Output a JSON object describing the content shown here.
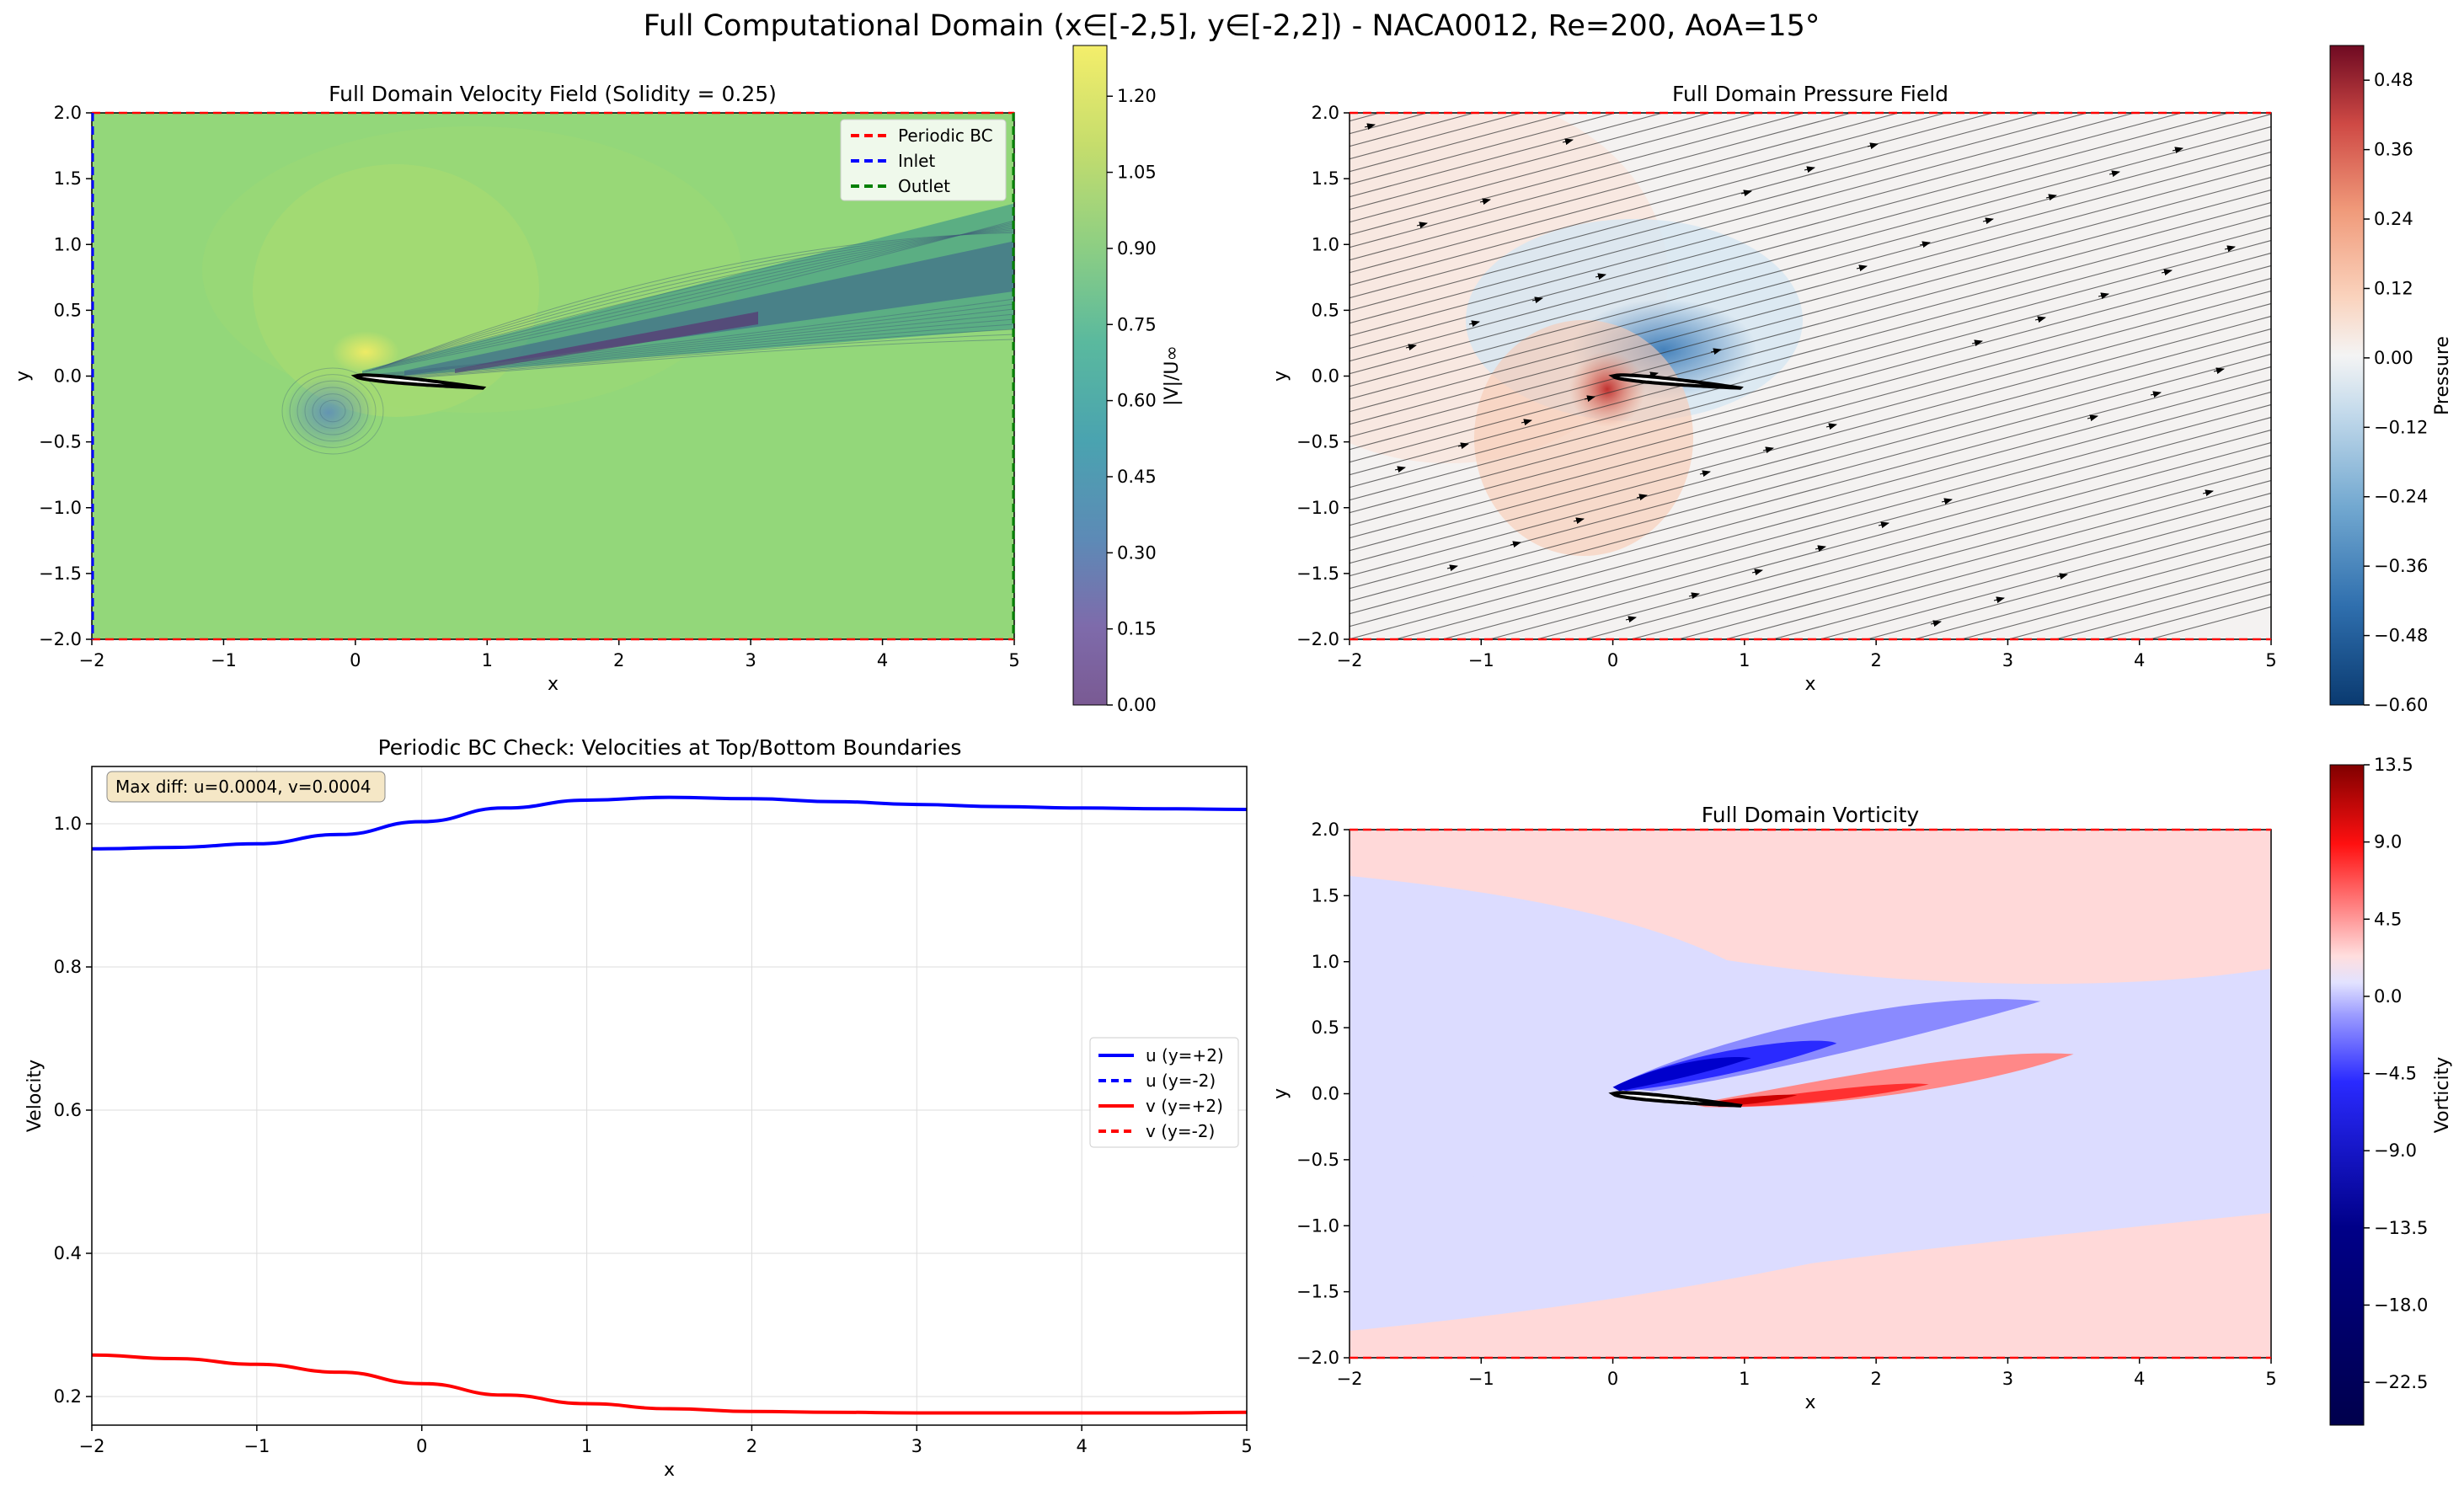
{
  "figure": {
    "suptitle": "Full Computational Domain (x∈[-2,5], y∈[-2,2]) - NACA0012, Re=200, AoA=15°"
  },
  "colors": {
    "periodic": "#ff0000",
    "inlet": "#0000ff",
    "outlet": "#008000",
    "u_line": "#0000ff",
    "v_line": "#ff0000",
    "airfoil_fill": "#ffffff",
    "airfoil_edge": "#000000"
  },
  "chart_data": [
    {
      "id": "velocity",
      "type": "heatmap",
      "title": "Full Domain Velocity Field (Solidity = 0.25)",
      "xlabel": "x",
      "ylabel": "y",
      "xlim": [
        -2,
        5
      ],
      "ylim": [
        -2,
        2
      ],
      "xticks": [
        "−2",
        "−1",
        "0",
        "1",
        "2",
        "3",
        "4",
        "5"
      ],
      "yticks": [
        "2.0",
        "1.5",
        "1.0",
        "0.5",
        "0.0",
        "−0.5",
        "−1.0",
        "−1.5",
        "−2.0"
      ],
      "colorbar": {
        "label": "|V|/U∞",
        "range": [
          0,
          1.3
        ],
        "ticks": [
          "1.20",
          "1.05",
          "0.90",
          "0.75",
          "0.60",
          "0.45",
          "0.30",
          "0.15",
          "0.00"
        ],
        "colormap": "viridis"
      },
      "background_level": 0.99,
      "legend": {
        "placement": "top-right",
        "entries": [
          {
            "label": "Periodic BC",
            "color": "#ff0000",
            "style": "dashed"
          },
          {
            "label": "Inlet",
            "color": "#0000ff",
            "style": "dashed"
          },
          {
            "label": "Outlet",
            "color": "#008000",
            "style": "dashed"
          }
        ]
      },
      "airfoil": {
        "leading_edge": [
          0,
          0
        ],
        "chord": 1,
        "aoa_deg": 15
      }
    },
    {
      "id": "pressure",
      "type": "heatmap",
      "title": "Full Domain Pressure Field",
      "xlabel": "x",
      "ylabel": "y",
      "xlim": [
        -2,
        5
      ],
      "ylim": [
        -2,
        2
      ],
      "xticks": [
        "−2",
        "−1",
        "0",
        "1",
        "2",
        "3",
        "4",
        "5"
      ],
      "yticks": [
        "2.0",
        "1.5",
        "1.0",
        "0.5",
        "0.0",
        "−0.5",
        "−1.0",
        "−1.5",
        "−2.0"
      ],
      "colorbar": {
        "label": "Pressure",
        "range": [
          -0.6,
          0.54
        ],
        "ticks": [
          "0.48",
          "0.36",
          "0.24",
          "0.12",
          "0.00",
          "−0.12",
          "−0.24",
          "−0.36",
          "−0.48",
          "−0.60"
        ],
        "colormap": "RdBu_r"
      },
      "streamline_angle_deg": 15,
      "airfoil": {
        "leading_edge": [
          0,
          0
        ],
        "chord": 1,
        "aoa_deg": 15
      }
    },
    {
      "id": "periodic_check",
      "type": "line",
      "title": "Periodic BC Check: Velocities at Top/Bottom Boundaries",
      "xlabel": "x",
      "ylabel": "Velocity",
      "xlim": [
        -2,
        5
      ],
      "ylim": [
        0.16,
        1.08
      ],
      "xticks": [
        "−2",
        "−1",
        "0",
        "1",
        "2",
        "3",
        "4",
        "5"
      ],
      "yticks": [
        "1.0",
        "0.8",
        "0.6",
        "0.4",
        "0.2"
      ],
      "grid": true,
      "annotation": "Max diff: u=0.0004, v=0.0004",
      "legend": {
        "placement": "center-right",
        "entries": [
          {
            "label": "u (y=+2)",
            "color": "#0000ff",
            "style": "solid"
          },
          {
            "label": "u (y=-2)",
            "color": "#0000ff",
            "style": "dashed"
          },
          {
            "label": "v (y=+2)",
            "color": "#ff0000",
            "style": "solid"
          },
          {
            "label": "v (y=-2)",
            "color": "#ff0000",
            "style": "dashed"
          }
        ]
      },
      "x": [
        -2,
        -1.5,
        -1,
        -0.5,
        0,
        0.5,
        1,
        1.5,
        2,
        2.5,
        3,
        3.5,
        4,
        4.5,
        5
      ],
      "series": [
        {
          "name": "u (y=+2)",
          "values": [
            0.965,
            0.967,
            0.972,
            0.985,
            1.003,
            1.022,
            1.033,
            1.037,
            1.035,
            1.031,
            1.027,
            1.024,
            1.022,
            1.021,
            1.02
          ]
        },
        {
          "name": "u (y=-2)",
          "values": [
            0.965,
            0.967,
            0.972,
            0.985,
            1.003,
            1.022,
            1.033,
            1.037,
            1.035,
            1.031,
            1.027,
            1.024,
            1.022,
            1.021,
            1.02
          ]
        },
        {
          "name": "v (y=+2)",
          "values": [
            0.258,
            0.253,
            0.245,
            0.234,
            0.218,
            0.202,
            0.19,
            0.183,
            0.179,
            0.178,
            0.177,
            0.177,
            0.177,
            0.177,
            0.178
          ]
        },
        {
          "name": "v (y=-2)",
          "values": [
            0.258,
            0.253,
            0.245,
            0.234,
            0.218,
            0.202,
            0.19,
            0.183,
            0.179,
            0.178,
            0.177,
            0.177,
            0.177,
            0.177,
            0.178
          ]
        }
      ]
    },
    {
      "id": "vorticity",
      "type": "heatmap",
      "title": "Full Domain Vorticity",
      "xlabel": "x",
      "ylabel": "y",
      "xlim": [
        -2,
        5
      ],
      "ylim": [
        -2,
        2
      ],
      "xticks": [
        "−2",
        "−1",
        "0",
        "1",
        "2",
        "3",
        "4",
        "5"
      ],
      "yticks": [
        "2.0",
        "1.5",
        "1.0",
        "0.5",
        "0.0",
        "−0.5",
        "−1.0",
        "−1.5",
        "−2.0"
      ],
      "colorbar": {
        "label": "Vorticity",
        "range": [
          -25,
          13.5
        ],
        "ticks": [
          "13.5",
          "9.0",
          "4.5",
          "0.0",
          "−4.5",
          "−9.0",
          "−13.5",
          "−18.0",
          "−22.5"
        ],
        "colormap": "seismic"
      },
      "airfoil": {
        "leading_edge": [
          0,
          0
        ],
        "chord": 1,
        "aoa_deg": 15
      }
    }
  ]
}
